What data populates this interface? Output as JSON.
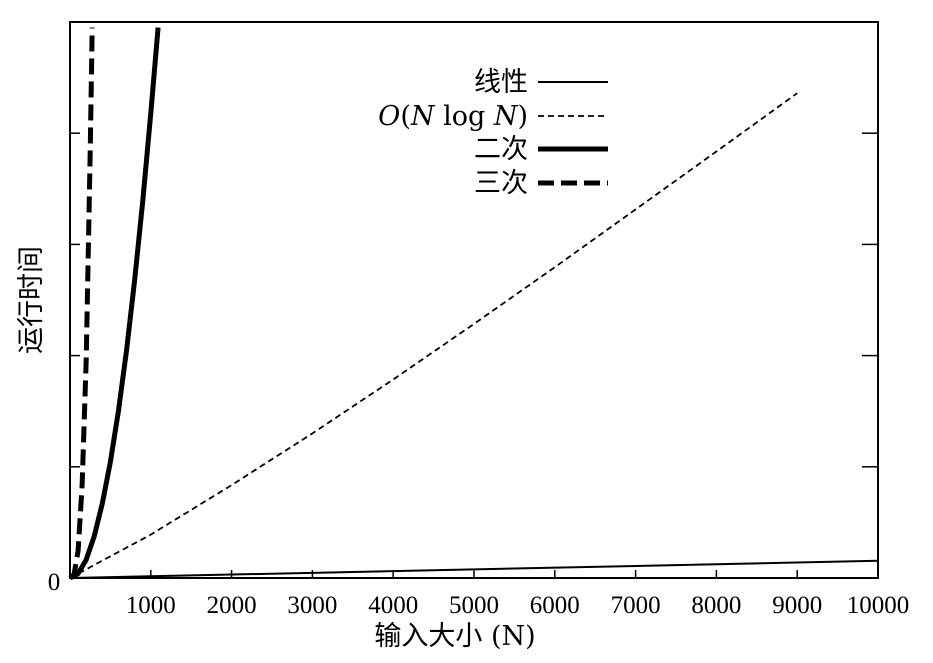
{
  "chart_data": {
    "type": "line",
    "xlabel": "输入大小 (N)",
    "ylabel": "运行时间",
    "x_ticks": [
      1000,
      2000,
      3000,
      4000,
      5000,
      6000,
      7000,
      8000,
      9000,
      10000
    ],
    "y_origin_label": "0",
    "xlim": [
      0,
      10000
    ],
    "ylim": [
      0,
      1
    ],
    "grid": false,
    "legend_position": "top-center",
    "series": [
      {
        "name": "线性",
        "style": "thin-solid",
        "x": [
          0,
          10000
        ],
        "y": [
          0,
          0.031
        ]
      },
      {
        "name": "O(N log N)",
        "style": "dashed",
        "x": [
          0,
          1000,
          2000,
          3000,
          4000,
          5000,
          6000,
          7000,
          8000,
          9000
        ],
        "y": [
          0,
          0.078,
          0.167,
          0.26,
          0.357,
          0.457,
          0.559,
          0.663,
          0.767,
          0.872
        ]
      },
      {
        "name": "二次",
        "style": "thick-solid",
        "x": [
          0,
          100,
          200,
          300,
          400,
          500,
          600,
          700,
          800,
          900,
          1000,
          1090
        ],
        "y": [
          0,
          0.008,
          0.033,
          0.075,
          0.134,
          0.209,
          0.301,
          0.41,
          0.535,
          0.677,
          0.836,
          0.99
        ]
      },
      {
        "name": "三次",
        "style": "thick-dashed",
        "x": [
          0,
          50,
          100,
          150,
          200,
          250,
          275
        ],
        "y": [
          0,
          0.006,
          0.049,
          0.166,
          0.392,
          0.766,
          0.99
        ]
      }
    ]
  }
}
